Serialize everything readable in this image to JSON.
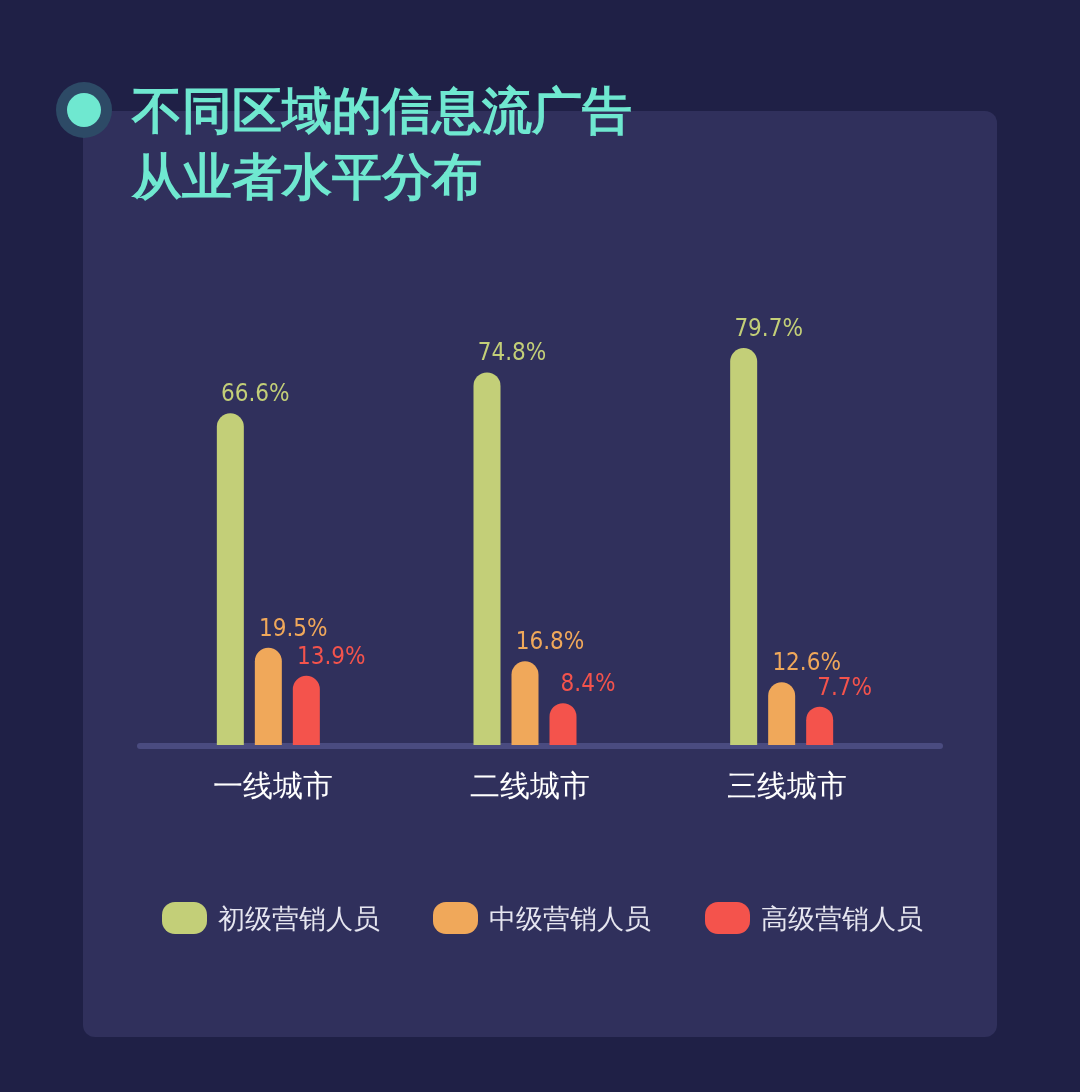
{
  "chart_data": {
    "type": "bar",
    "title": "不同区域的信息流广告从业者水平分布",
    "categories": [
      "一线城市",
      "二线城市",
      "三线城市"
    ],
    "series": [
      {
        "name": "初级营销人员",
        "color": "#c3cf78",
        "values": [
          66.6,
          74.8,
          79.7
        ],
        "value_labels": [
          "66.6%",
          "74.8%",
          "79.7%"
        ]
      },
      {
        "name": "中级营销人员",
        "color": "#f0a85a",
        "values": [
          19.5,
          16.8,
          12.6
        ],
        "value_labels": [
          "19.5%",
          "16.8%",
          "12.6%"
        ]
      },
      {
        "name": "高级营销人员",
        "color": "#f4534c",
        "values": [
          13.9,
          8.4,
          7.7
        ],
        "value_labels": [
          "13.9%",
          "8.4%",
          "7.7%"
        ]
      }
    ],
    "legend": "bottom",
    "grid": false
  }
}
